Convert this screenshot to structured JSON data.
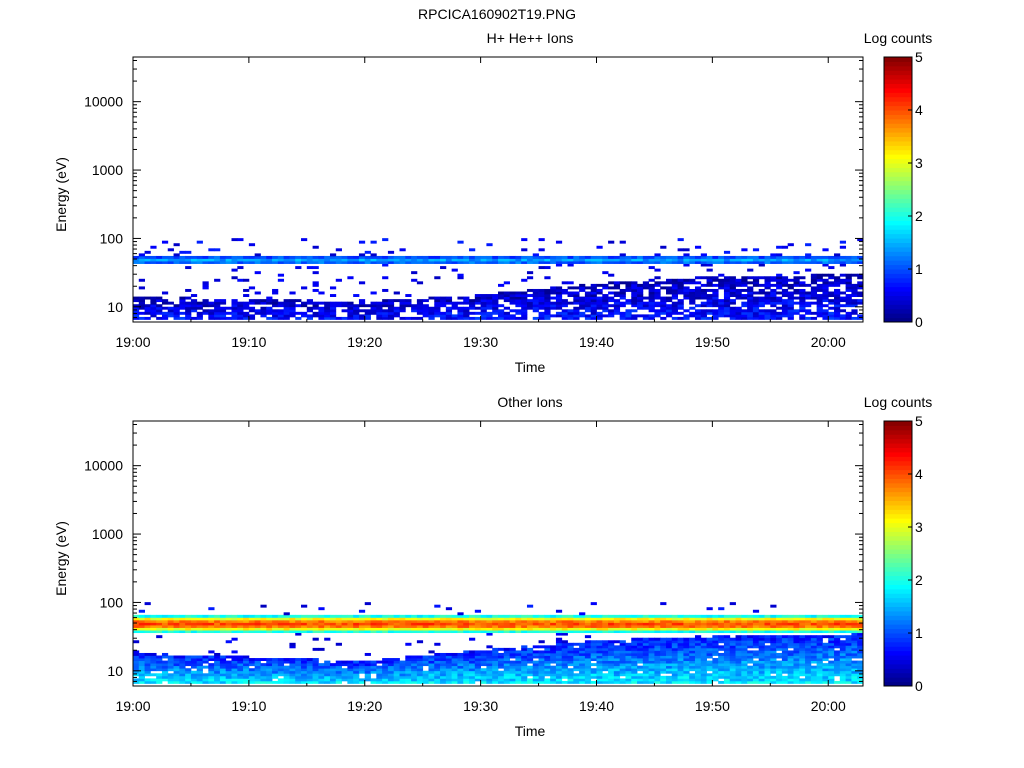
{
  "figure": {
    "title": "RPCICA160902T19.PNG"
  },
  "chart_data": [
    {
      "type": "heatmap",
      "title": "H+ He++ Ions",
      "xlabel": "Time",
      "ylabel": "Energy (eV)",
      "yscale": "log",
      "ylim": [
        6,
        45000
      ],
      "xlim": [
        "19:00",
        "20:03"
      ],
      "x_ticks": [
        "19:00",
        "19:10",
        "19:20",
        "19:30",
        "19:40",
        "19:50",
        "20:00"
      ],
      "y_ticks": [
        "10",
        "100",
        "1000",
        "10000"
      ],
      "colorbar": {
        "label": "Log counts",
        "min": 0,
        "max": 5,
        "ticks": [
          "0",
          "1",
          "2",
          "3",
          "4",
          "5"
        ]
      },
      "bands": [
        {
          "name": "main",
          "lo": 42,
          "hi": 56,
          "peak": 1.4,
          "density": 1.0
        },
        {
          "name": "low",
          "lo": 6.5,
          "hi": 16,
          "peak": 0.7,
          "density": 0.75
        }
      ],
      "trend": {
        "time": [
          "19:00",
          "19:20",
          "19:30",
          "19:40",
          "19:50",
          "20:03"
        ],
        "low_band_upper_eV": [
          14,
          12,
          15,
          22,
          28,
          30
        ]
      }
    },
    {
      "type": "heatmap",
      "title": "Other Ions",
      "xlabel": "Time",
      "ylabel": "Energy (eV)",
      "yscale": "log",
      "ylim": [
        6,
        45000
      ],
      "xlim": [
        "19:00",
        "20:03"
      ],
      "x_ticks": [
        "19:00",
        "19:10",
        "19:20",
        "19:30",
        "19:40",
        "19:50",
        "20:00"
      ],
      "y_ticks": [
        "10",
        "100",
        "1000",
        "10000"
      ],
      "colorbar": {
        "label": "Log counts",
        "min": 0,
        "max": 5,
        "ticks": [
          "0",
          "1",
          "2",
          "3",
          "4",
          "5"
        ]
      },
      "bands": [
        {
          "name": "main",
          "lo": 36,
          "hi": 66,
          "peak": 4.0,
          "density": 1.0
        },
        {
          "name": "low",
          "lo": 6.5,
          "hi": 22,
          "peak": 1.8,
          "density": 0.95
        }
      ],
      "trend": {
        "time": [
          "19:00",
          "19:10",
          "19:20",
          "19:30",
          "19:40",
          "19:50",
          "20:03"
        ],
        "low_band_upper_eV": [
          18,
          16,
          14,
          20,
          28,
          32,
          35
        ]
      }
    }
  ]
}
